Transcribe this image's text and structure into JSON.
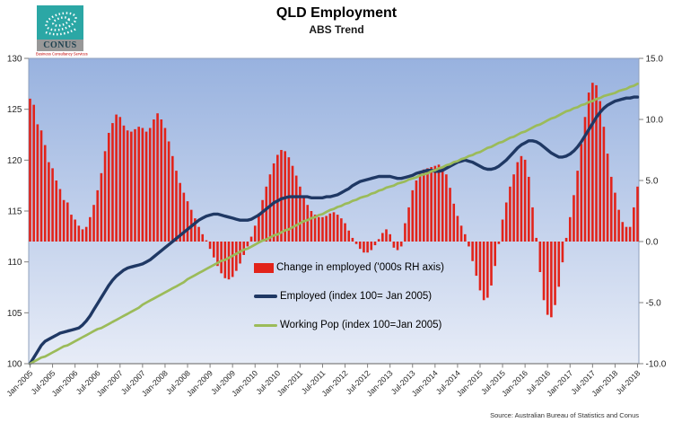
{
  "logo": {
    "name": "CONUS",
    "tagline": "Business Consultancy Services"
  },
  "header": {
    "title": "QLD Employment",
    "subtitle": "ABS Trend"
  },
  "source": "Source: Australian Bureau of Statistics and Conus",
  "colors": {
    "bar": "#e2231a",
    "employed_line": "#1f3864",
    "working_pop_line": "#9bbb59",
    "plot_bg_top": "#98b2df",
    "plot_bg_bottom": "#e7ecf7",
    "axis_line": "#7f7f7f"
  },
  "chart_data": {
    "type": "bar+line",
    "frequency": "monthly",
    "x_start": "Jan-2005",
    "x_end": "Jul-2018",
    "x_tick_labels": [
      "Jan-2005",
      "Jul-2005",
      "Jan-2006",
      "Jul-2006",
      "Jan-2007",
      "Jul-2007",
      "Jan-2008",
      "Jul-2008",
      "Jan-2009",
      "Jul-2009",
      "Jan-2010",
      "Jul-2010",
      "Jan-2011",
      "Jul-2011",
      "Jan-2012",
      "Jul-2012",
      "Jan-2013",
      "Jul-2013",
      "Jan-2014",
      "Jul-2014",
      "Jan-2015",
      "Jul-2015",
      "Jan-2016",
      "Jul-2016",
      "Jan-2017",
      "Jul-2017",
      "Jan-2018",
      "Jul-2018"
    ],
    "left_axis": {
      "tick_labels": [
        "130",
        "125",
        "120",
        "115",
        "110",
        "105",
        "100"
      ],
      "min": 100,
      "max": 130
    },
    "right_axis": {
      "tick_labels": [
        "15.0",
        "10.0",
        "5.0",
        "0.0",
        "-5.0",
        "-10.0"
      ],
      "min": -10,
      "max": 15
    },
    "grid": false,
    "legend_position": "inside-lower-left",
    "series": [
      {
        "name": "Change in employed ('000s RH axis)",
        "type": "bar",
        "axis": "right",
        "values": [
          11.7,
          11.2,
          9.6,
          9.1,
          7.9,
          6.5,
          6.0,
          5.0,
          4.3,
          3.4,
          3.2,
          2.2,
          1.8,
          1.3,
          1.0,
          1.2,
          2.0,
          3.0,
          4.2,
          5.6,
          7.4,
          8.9,
          9.7,
          10.4,
          10.2,
          9.5,
          9.1,
          9.0,
          9.2,
          9.4,
          9.3,
          9.0,
          9.3,
          10.0,
          10.5,
          10.0,
          9.3,
          8.2,
          7.0,
          5.8,
          4.8,
          4.0,
          3.3,
          2.6,
          1.9,
          1.2,
          0.6,
          0.1,
          -0.6,
          -1.3,
          -2.0,
          -2.6,
          -3.0,
          -3.1,
          -2.9,
          -2.4,
          -1.8,
          -1.1,
          -0.4,
          0.4,
          1.3,
          2.3,
          3.4,
          4.5,
          5.5,
          6.4,
          7.1,
          7.5,
          7.4,
          6.9,
          6.2,
          5.4,
          4.5,
          3.7,
          3.0,
          2.5,
          2.2,
          2.0,
          2.0,
          2.1,
          2.3,
          2.4,
          2.2,
          1.9,
          1.5,
          0.9,
          0.3,
          -0.2,
          -0.6,
          -0.9,
          -0.9,
          -0.7,
          -0.3,
          0.2,
          0.7,
          1.0,
          0.6,
          -0.5,
          -0.7,
          -0.4,
          1.5,
          2.8,
          4.2,
          5.0,
          5.6,
          5.9,
          6.0,
          6.1,
          6.2,
          6.3,
          6.0,
          5.5,
          4.4,
          3.1,
          2.1,
          1.3,
          0.6,
          -0.4,
          -1.6,
          -2.8,
          -4.0,
          -4.8,
          -4.6,
          -3.6,
          -2.0,
          -0.2,
          1.8,
          3.2,
          4.5,
          5.5,
          6.5,
          7.0,
          6.7,
          5.3,
          2.8,
          0.3,
          -2.5,
          -4.8,
          -6.0,
          -6.2,
          -5.2,
          -3.7,
          -1.7,
          0.3,
          2.0,
          3.8,
          5.8,
          8.0,
          10.2,
          12.2,
          13.0,
          12.8,
          11.5,
          9.4,
          7.2,
          5.3,
          4.0,
          2.6,
          1.6,
          1.2,
          1.2,
          2.8,
          4.5
        ]
      },
      {
        "name": "Employed (index 100= Jan 2005)",
        "type": "line",
        "axis": "left",
        "values": [
          100.0,
          100.6,
          101.2,
          101.8,
          102.2,
          102.4,
          102.6,
          102.8,
          103.0,
          103.1,
          103.2,
          103.3,
          103.4,
          103.5,
          103.8,
          104.2,
          104.7,
          105.3,
          105.9,
          106.5,
          107.1,
          107.7,
          108.2,
          108.6,
          108.9,
          109.2,
          109.4,
          109.5,
          109.6,
          109.7,
          109.8,
          110.0,
          110.2,
          110.5,
          110.8,
          111.1,
          111.4,
          111.7,
          112.0,
          112.3,
          112.6,
          112.9,
          113.2,
          113.5,
          113.8,
          114.1,
          114.3,
          114.5,
          114.6,
          114.7,
          114.7,
          114.6,
          114.5,
          114.4,
          114.3,
          114.2,
          114.1,
          114.1,
          114.1,
          114.2,
          114.4,
          114.6,
          114.9,
          115.2,
          115.5,
          115.8,
          116.0,
          116.2,
          116.3,
          116.4,
          116.4,
          116.4,
          116.4,
          116.4,
          116.4,
          116.3,
          116.3,
          116.3,
          116.3,
          116.4,
          116.4,
          116.5,
          116.6,
          116.8,
          117.0,
          117.2,
          117.5,
          117.7,
          117.9,
          118.0,
          118.1,
          118.2,
          118.3,
          118.4,
          118.4,
          118.4,
          118.4,
          118.3,
          118.2,
          118.2,
          118.3,
          118.4,
          118.5,
          118.7,
          118.8,
          118.9,
          119.0,
          119.0,
          118.9,
          118.9,
          119.0,
          119.2,
          119.4,
          119.6,
          119.8,
          119.9,
          120.0,
          119.9,
          119.8,
          119.6,
          119.4,
          119.2,
          119.1,
          119.1,
          119.2,
          119.4,
          119.7,
          120.0,
          120.4,
          120.8,
          121.2,
          121.5,
          121.7,
          121.9,
          121.9,
          121.8,
          121.6,
          121.3,
          121.0,
          120.7,
          120.5,
          120.3,
          120.3,
          120.4,
          120.6,
          120.9,
          121.3,
          121.8,
          122.4,
          123.0,
          123.6,
          124.2,
          124.7,
          125.1,
          125.4,
          125.6,
          125.8,
          125.9,
          126.0,
          126.1,
          126.1,
          126.2,
          126.2
        ]
      },
      {
        "name": "Working Pop (index 100=Jan 2005)",
        "type": "line",
        "axis": "left",
        "values": [
          100.0,
          100.2,
          100.4,
          100.6,
          100.7,
          100.9,
          101.1,
          101.3,
          101.5,
          101.7,
          101.8,
          102.0,
          102.2,
          102.4,
          102.6,
          102.8,
          103.0,
          103.2,
          103.4,
          103.5,
          103.7,
          103.9,
          104.1,
          104.3,
          104.5,
          104.7,
          104.9,
          105.1,
          105.3,
          105.5,
          105.8,
          106.0,
          106.2,
          106.4,
          106.6,
          106.8,
          107.0,
          107.2,
          107.4,
          107.6,
          107.8,
          108.0,
          108.3,
          108.5,
          108.7,
          108.9,
          109.1,
          109.3,
          109.5,
          109.7,
          109.9,
          110.1,
          110.2,
          110.4,
          110.6,
          110.8,
          111.0,
          111.2,
          111.3,
          111.5,
          111.7,
          111.9,
          112.1,
          112.2,
          112.4,
          112.6,
          112.7,
          112.9,
          113.1,
          113.2,
          113.4,
          113.6,
          113.8,
          114.0,
          114.1,
          114.3,
          114.4,
          114.6,
          114.7,
          114.9,
          115.1,
          115.2,
          115.4,
          115.5,
          115.7,
          115.8,
          116.0,
          116.1,
          116.3,
          116.4,
          116.5,
          116.7,
          116.8,
          117.0,
          117.1,
          117.3,
          117.4,
          117.5,
          117.7,
          117.8,
          117.9,
          118.1,
          118.2,
          118.3,
          118.5,
          118.6,
          118.7,
          118.9,
          119.0,
          119.2,
          119.3,
          119.5,
          119.6,
          119.8,
          119.9,
          120.1,
          120.2,
          120.4,
          120.5,
          120.7,
          120.8,
          121.0,
          121.2,
          121.3,
          121.5,
          121.7,
          121.8,
          122.0,
          122.2,
          122.3,
          122.5,
          122.7,
          122.8,
          123.0,
          123.2,
          123.4,
          123.5,
          123.7,
          123.9,
          124.1,
          124.2,
          124.4,
          124.6,
          124.8,
          124.9,
          125.1,
          125.2,
          125.4,
          125.5,
          125.7,
          125.8,
          126.0,
          126.1,
          126.3,
          126.4,
          126.5,
          126.6,
          126.8,
          126.9,
          127.0,
          127.2,
          127.3,
          127.5
        ]
      }
    ]
  }
}
